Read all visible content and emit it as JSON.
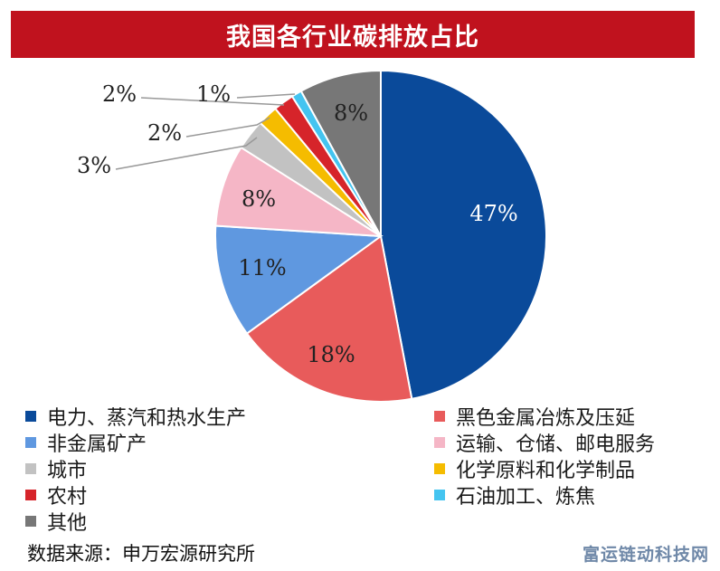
{
  "chart_data": {
    "type": "pie",
    "title": "我国各行业碳排放占比",
    "categories": [
      "电力、蒸汽和热水生产",
      "黑色金属冶炼及压延",
      "非金属矿产",
      "运输、仓储、邮电服务",
      "城市",
      "化学原料和化学制品",
      "农村",
      "石油加工、炼焦",
      "其他"
    ],
    "values": [
      47,
      18,
      11,
      8,
      3,
      2,
      2,
      1,
      8
    ],
    "labels": [
      "47%",
      "18%",
      "11%",
      "8%",
      "3%",
      "2%",
      "2%",
      "1%",
      "8%"
    ],
    "colors": [
      "#0a4a9a",
      "#e85b5b",
      "#5f98e0",
      "#f5b6c6",
      "#c2c2c2",
      "#f5bc00",
      "#d6242a",
      "#44c4f0",
      "#777777"
    ],
    "legend_placement": "bottom"
  },
  "source_text": "数据来源：申万宏源研究所",
  "watermark": "富运链动科技网"
}
